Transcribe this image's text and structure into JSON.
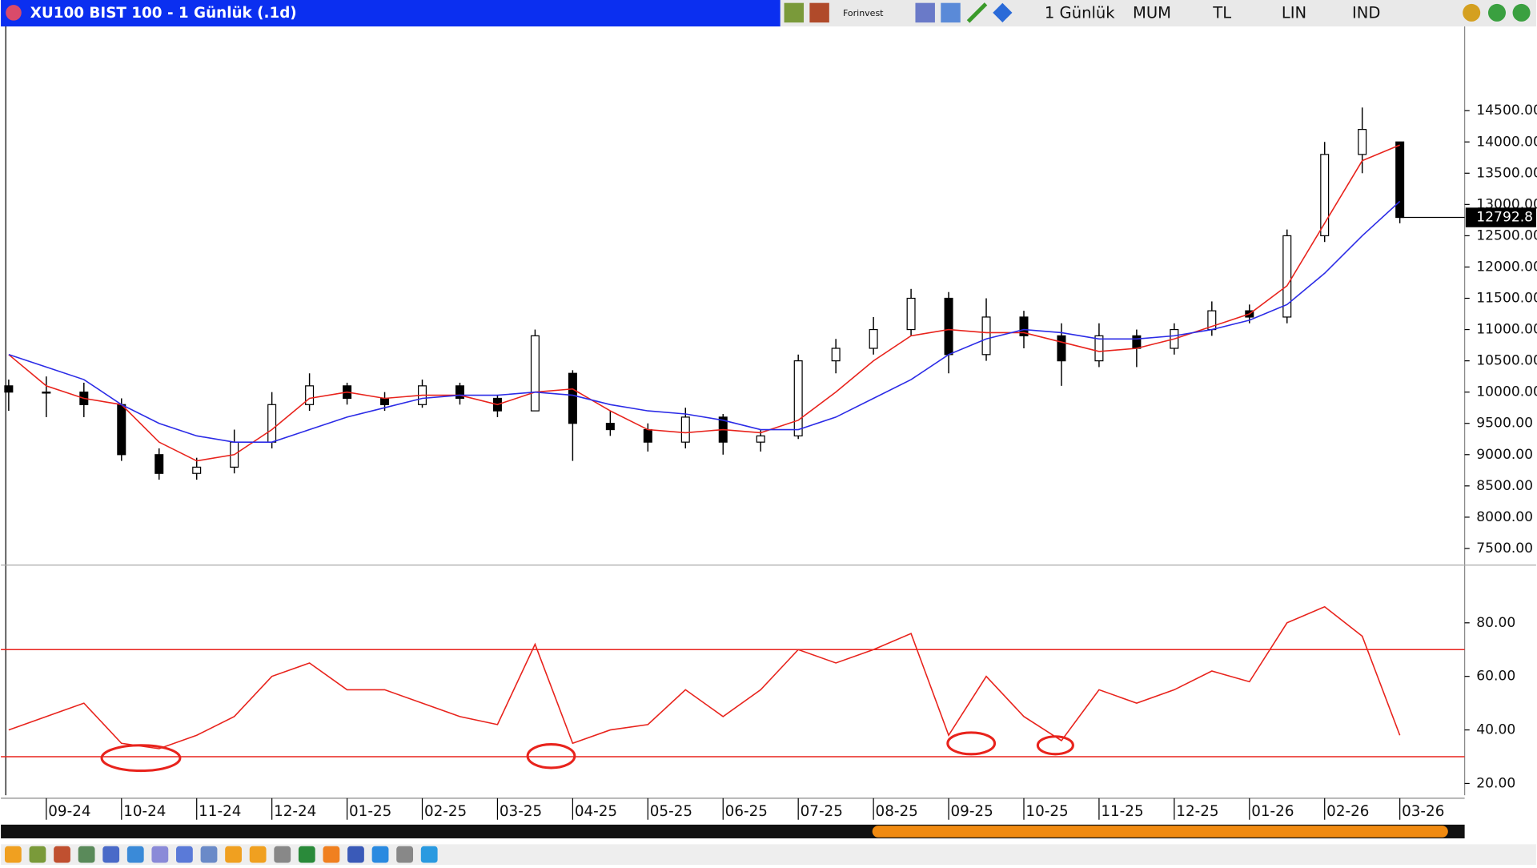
{
  "window": {
    "title": "XU100 BIST 100 - 1 Günlük (.1d)",
    "toolbar": [
      "Forinvest",
      "1 Günlük",
      "MUM",
      "TL",
      "LIN",
      "IND"
    ]
  },
  "chart_data": [
    {
      "type": "candlestick",
      "categories": [
        null,
        "09-24",
        null,
        "10-24",
        null,
        "11-24",
        null,
        "12-24",
        null,
        "01-25",
        null,
        "02-25",
        null,
        "03-25",
        null,
        "04-25",
        null,
        "05-25",
        null,
        "06-25",
        null,
        "07-25",
        null,
        "08-25",
        null,
        "09-25",
        null,
        "10-25",
        null,
        "11-25",
        null,
        "12-25",
        null,
        "01-26",
        null,
        "02-26",
        null,
        "03-26"
      ],
      "open": [
        10100,
        10000,
        10000,
        9800,
        9000,
        8700,
        8800,
        9200,
        9800,
        10100,
        9900,
        9800,
        10100,
        9900,
        9700,
        10300,
        9500,
        9400,
        9200,
        9600,
        9200,
        9300,
        10500,
        10700,
        11000,
        11500,
        10600,
        11200,
        10900,
        10500,
        10900,
        10700,
        11000,
        11300,
        11200,
        12500,
        13800,
        14000
      ],
      "high": [
        10200,
        10250,
        10150,
        9900,
        9100,
        8950,
        9400,
        10000,
        10300,
        10150,
        10000,
        10200,
        10150,
        9950,
        11000,
        10350,
        9700,
        9500,
        9750,
        9650,
        9400,
        10600,
        10850,
        11200,
        11650,
        11600,
        11500,
        11300,
        11100,
        11100,
        11000,
        11100,
        11450,
        11400,
        12600,
        14000,
        14550,
        14000
      ],
      "low": [
        9700,
        9600,
        9600,
        8900,
        8600,
        8600,
        8700,
        9100,
        9700,
        9800,
        9700,
        9750,
        9800,
        9600,
        9700,
        8900,
        9300,
        9050,
        9100,
        9000,
        9050,
        9250,
        10300,
        10600,
        10900,
        10300,
        10500,
        10700,
        10100,
        10400,
        10400,
        10600,
        10900,
        11100,
        11100,
        12400,
        13500,
        12700
      ],
      "close": [
        10000,
        10000,
        9800,
        9000,
        8700,
        8800,
        9200,
        9800,
        10100,
        9900,
        9800,
        10100,
        9900,
        9700,
        10900,
        9500,
        9400,
        9200,
        9600,
        9200,
        9300,
        10500,
        10700,
        11000,
        11500,
        10600,
        11200,
        10900,
        10500,
        10900,
        10700,
        11000,
        11300,
        11200,
        12500,
        13800,
        14200,
        12792.8
      ],
      "color": "#000000",
      "series": [
        {
          "color": "#e8231c",
          "values": [
            10600,
            10100,
            9900,
            9800,
            9200,
            8900,
            9000,
            9400,
            9900,
            10000,
            9900,
            9950,
            9950,
            9800,
            10000,
            10050,
            9700,
            9400,
            9350,
            9400,
            9350,
            9550,
            10000,
            10500,
            10900,
            11000,
            10950,
            10950,
            10800,
            10650,
            10700,
            10850,
            11050,
            11250,
            11700,
            12700,
            13700,
            13950
          ]
        },
        {
          "color": "#2b2be6",
          "values": [
            10600,
            10400,
            10200,
            9800,
            9500,
            9300,
            9200,
            9200,
            9400,
            9600,
            9750,
            9900,
            9950,
            9950,
            10000,
            9950,
            9800,
            9700,
            9650,
            9550,
            9400,
            9400,
            9600,
            9900,
            10200,
            10600,
            10850,
            11000,
            10950,
            10850,
            10850,
            10900,
            11000,
            11150,
            11400,
            11900,
            12500,
            13050
          ]
        }
      ],
      "ylim": [
        7265,
        15831
      ],
      "yticks": [
        {
          "value": 7500,
          "label": "7500.00"
        },
        {
          "value": 8000,
          "label": "8000.00"
        },
        {
          "value": 8500,
          "label": "8500.00"
        },
        {
          "value": 9000,
          "label": "9000.00"
        },
        {
          "value": 9500,
          "label": "9500.00"
        },
        {
          "value": 10000,
          "label": "10000.00"
        },
        {
          "value": 10500,
          "label": "10500.00"
        },
        {
          "value": 11000,
          "label": "11000.00"
        },
        {
          "value": 11500,
          "label": "11500.00"
        },
        {
          "value": 12000,
          "label": "12000.00"
        },
        {
          "value": 12500,
          "label": "12500.00"
        },
        {
          "value": 13000,
          "label": "13000.00"
        },
        {
          "value": 13500,
          "label": "13500.00"
        },
        {
          "value": 14000,
          "label": "14000.00"
        },
        {
          "value": 14500,
          "label": "14500.00"
        }
      ]
    },
    {
      "type": "line",
      "series": [
        {
          "color": "#e8231c",
          "values": [
            40,
            45,
            50,
            35,
            33,
            38,
            45,
            60,
            65,
            55,
            55,
            50,
            45,
            42,
            72,
            35,
            40,
            42,
            55,
            45,
            55,
            70,
            65,
            70,
            76,
            38,
            60,
            45,
            36,
            55,
            50,
            55,
            62,
            58,
            80,
            86,
            75,
            38
          ]
        }
      ],
      "ylim": [
        15.6,
        96.8
      ],
      "yticks": [
        {
          "value": 20,
          "label": "20.00"
        },
        {
          "value": 40,
          "label": "40.00"
        },
        {
          "value": 60,
          "label": "60.00"
        },
        {
          "value": 80,
          "label": "80.00"
        }
      ],
      "hlines": [
        70,
        30
      ],
      "hline_color": "#e8231c"
    }
  ]
}
